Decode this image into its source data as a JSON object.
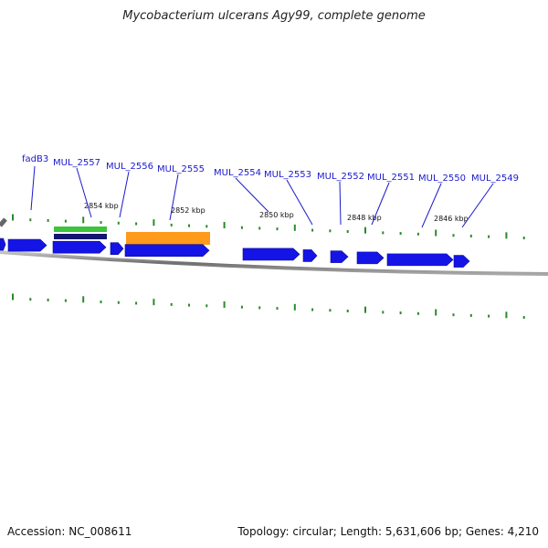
{
  "title": "Mycobacterium ulcerans Agy99, complete genome",
  "footer": {
    "accession": "Accession: NC_008611",
    "summary": "Topology: circular; Length: 5,631,606 bp; Genes: 4,210"
  },
  "colors": {
    "gene": "#1414e6",
    "label": "#1a1acc",
    "backbone": "#808080",
    "tick": "#2a8a2a",
    "feature_green": "#3cc43c",
    "feature_navy": "#14146e",
    "feature_orange": "#ff9a1a"
  },
  "position_ticks": [
    "2854 kbp",
    "2852 kbp",
    "2850 kbp",
    "2848 kbp",
    "2846 kbp"
  ],
  "gene_labels": [
    "fadB3",
    "MUL_2557",
    "MUL_2556",
    "MUL_2555",
    "MUL_2554",
    "MUL_2553",
    "MUL_2552",
    "MUL_2551",
    "MUL_2550",
    "MUL_2549"
  ]
}
